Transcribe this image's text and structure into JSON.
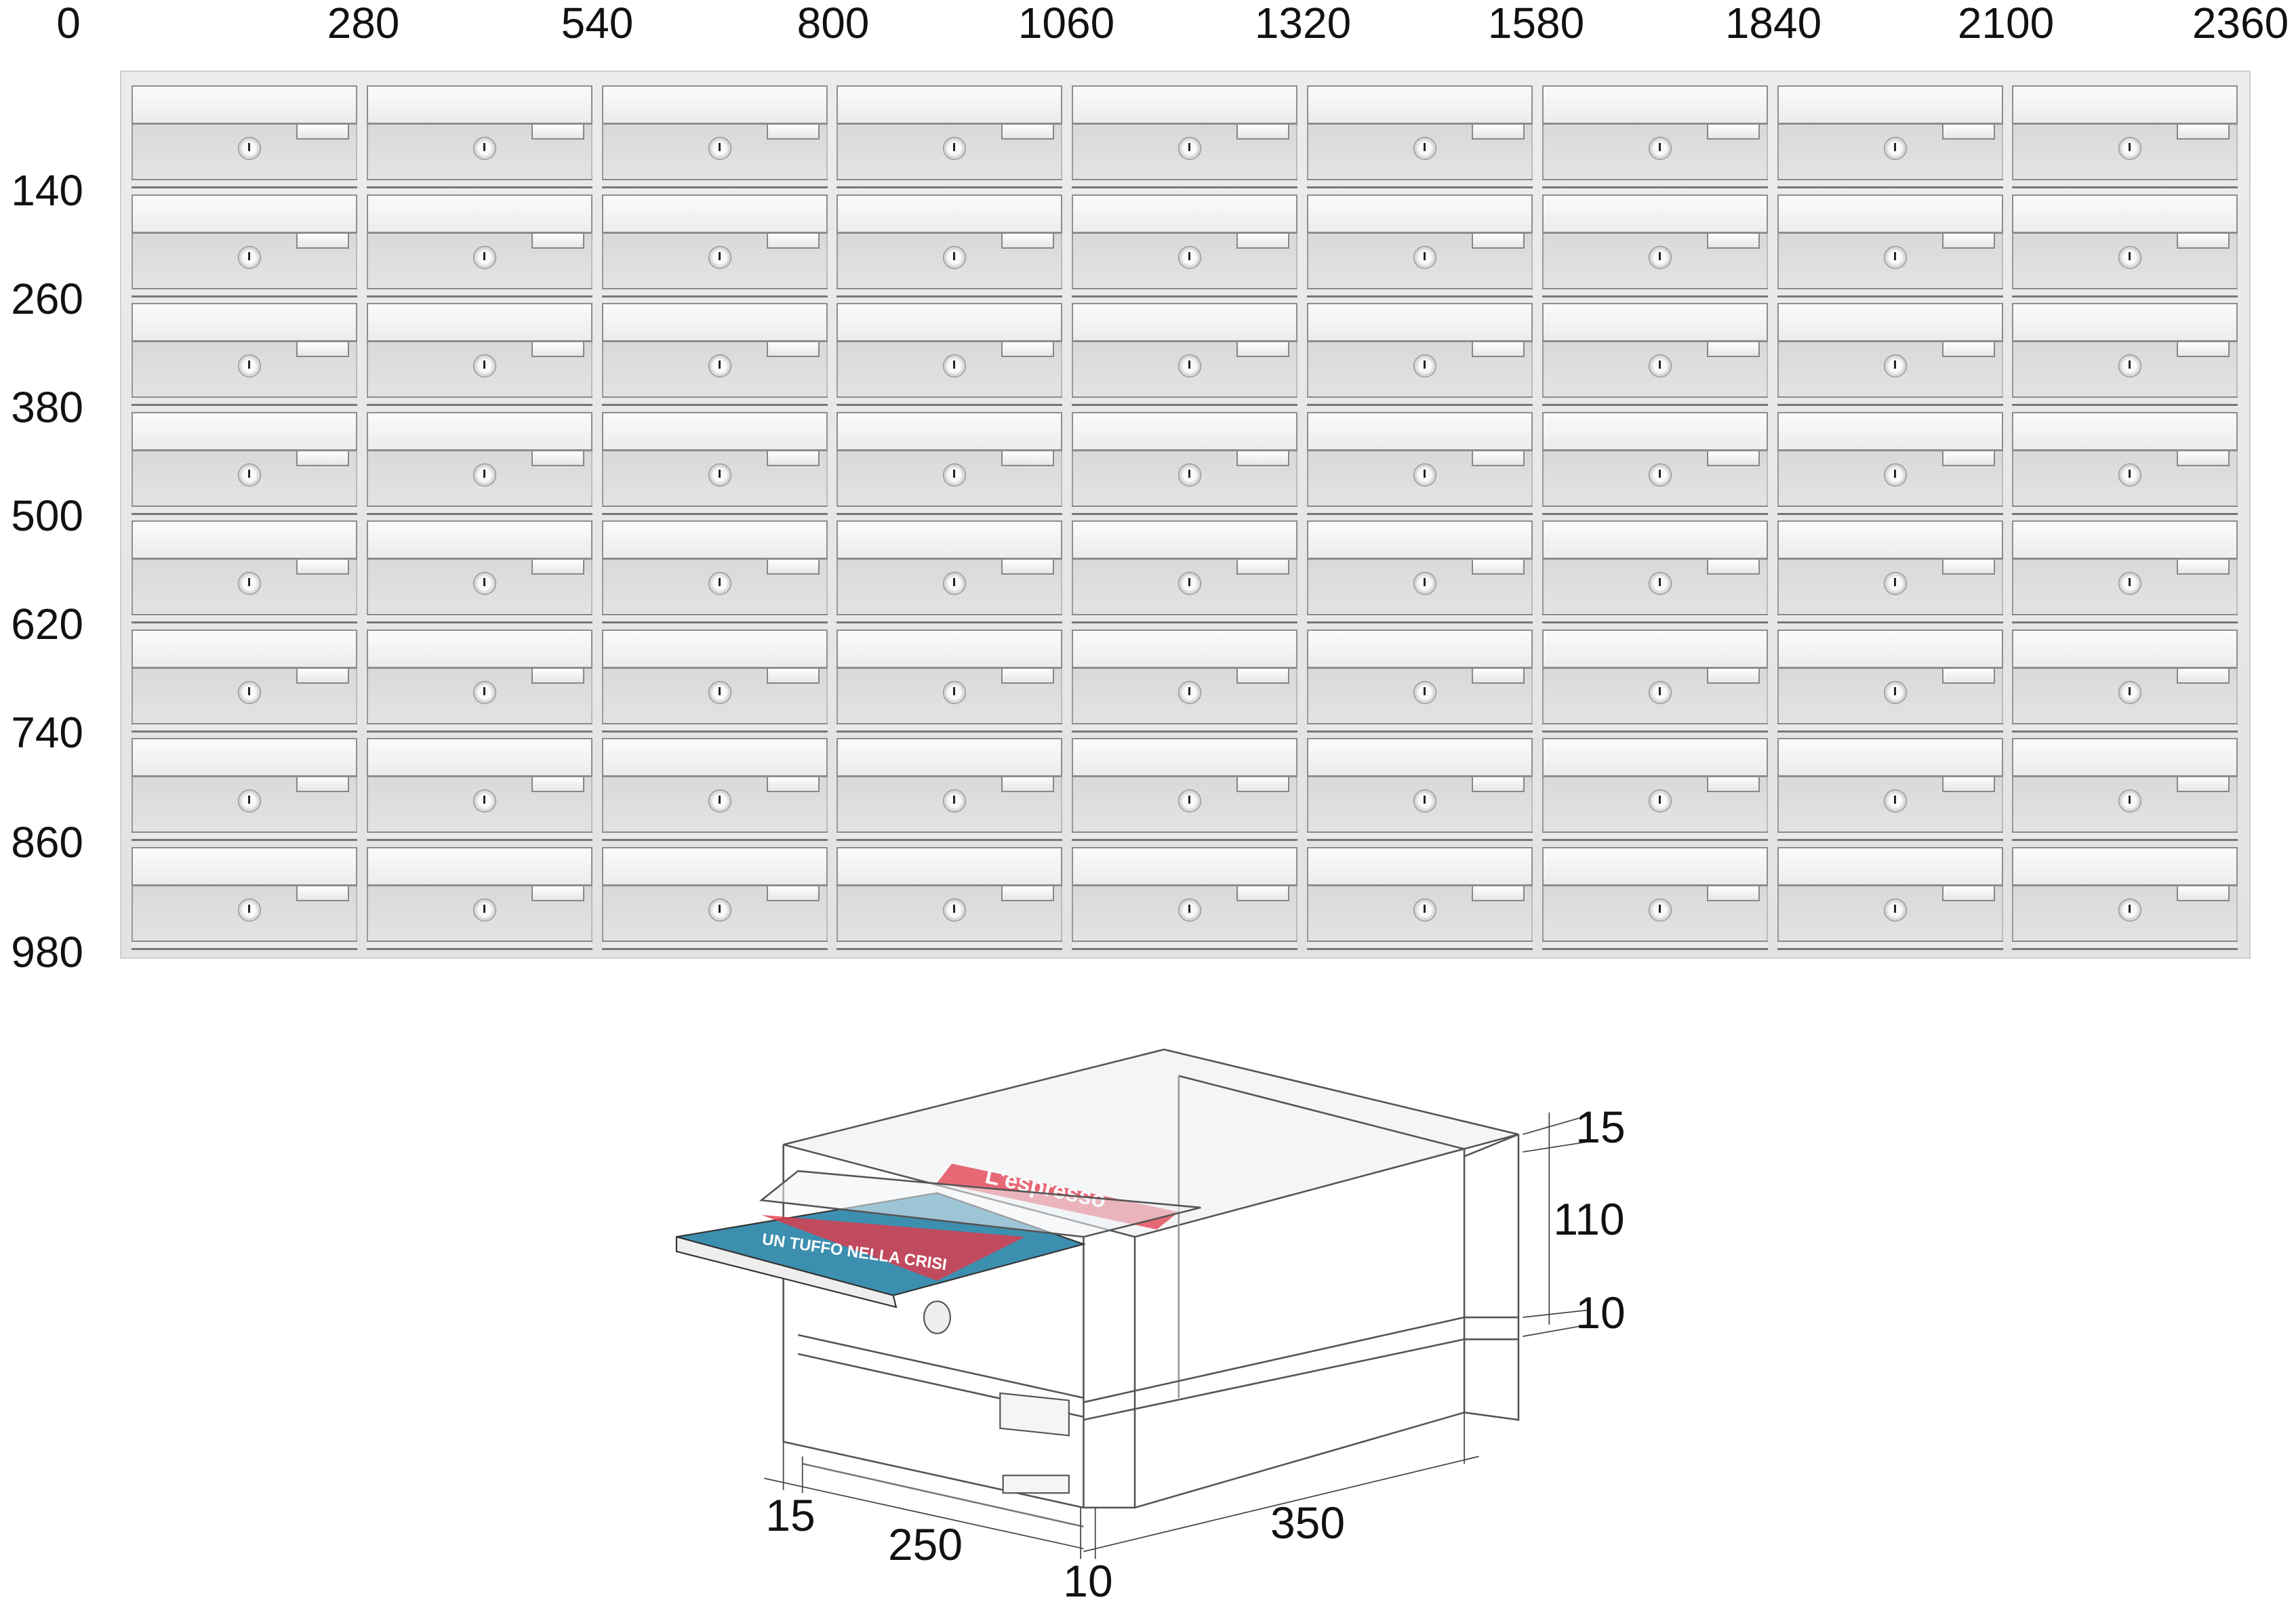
{
  "top_axis_labels": [
    "0",
    "280",
    "540",
    "800",
    "1060",
    "1320",
    "1580",
    "1840",
    "2100",
    "2360"
  ],
  "left_axis_labels": [
    "140",
    "260",
    "380",
    "500",
    "620",
    "740",
    "860",
    "980"
  ],
  "mailbox_grid": {
    "columns": 9,
    "rows": 8,
    "icons": [
      "key-lock-icon",
      "name-tag"
    ]
  },
  "diagram": {
    "dimensions": {
      "top_plate": "15",
      "compartment_height": "110",
      "shelf": "10",
      "side_wall": "15",
      "front_width": "250",
      "divider": "10",
      "depth": "350"
    },
    "magazine": {
      "title": "L'espresso",
      "headline": "UN TUFFO NELLA CRISI"
    },
    "colors": {
      "magazine_red": "#e23a4a",
      "magazine_sea": "#3d8fb0"
    }
  }
}
